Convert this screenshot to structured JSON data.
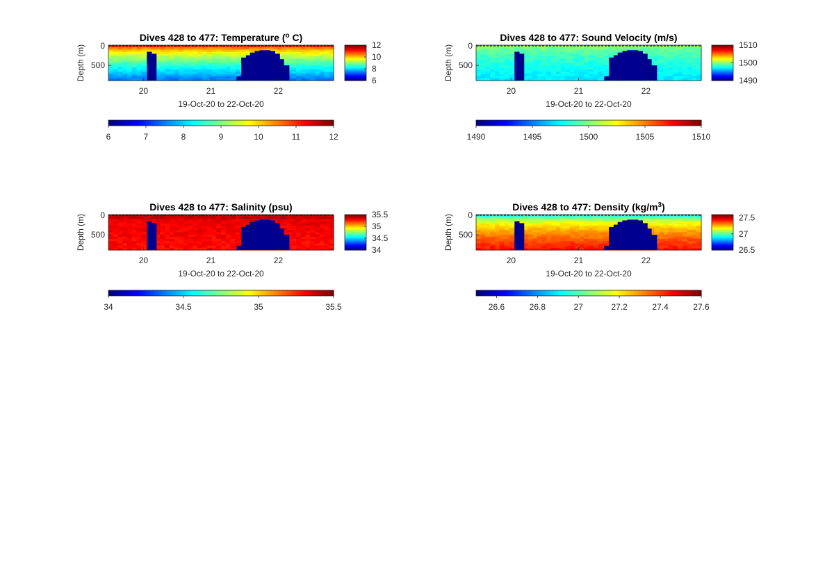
{
  "chart_data": [
    {
      "type": "heatmap",
      "title": "Dives 428 to 477: Temperature (° C)",
      "title_parts": {
        "pre": "Dives 428 to 477: Temperature (",
        "sup": "o",
        "post": " C)"
      },
      "ylabel": "Depth (m)",
      "xlabel": "19-Oct-20 to 22-Oct-20",
      "x_ticks": [
        "20",
        "21",
        "22"
      ],
      "y_ticks": [
        "0",
        "500"
      ],
      "cbar_right_ticks": [
        "12",
        "10",
        "8",
        "6"
      ],
      "cbar_bottom_ticks": [
        "6",
        "7",
        "8",
        "9",
        "10",
        "11",
        "12"
      ],
      "clim": [
        6,
        12
      ],
      "surface_value": 11.6,
      "deep_value": 7.4,
      "colormap": "jet"
    },
    {
      "type": "heatmap",
      "title": "Dives 428 to 477: Sound Velocity (m/s)",
      "title_parts": {
        "pre": "Dives 428 to 477: Sound Velocity (m/s)",
        "sup": "",
        "post": ""
      },
      "ylabel": "Depth (m)",
      "xlabel": "19-Oct-20 to 22-Oct-20",
      "x_ticks": [
        "20",
        "21",
        "22"
      ],
      "y_ticks": [
        "0",
        "500"
      ],
      "cbar_right_ticks": [
        "1510",
        "1500",
        "1490"
      ],
      "cbar_bottom_ticks": [
        "1490",
        "1495",
        "1500",
        "1505",
        "1510"
      ],
      "clim": [
        1490,
        1510
      ],
      "surface_value": 1501,
      "deep_value": 1497,
      "colormap": "jet"
    },
    {
      "type": "heatmap",
      "title": "Dives 428 to 477: Salinity (psu)",
      "title_parts": {
        "pre": "Dives 428 to 477: Salinity (psu)",
        "sup": "",
        "post": ""
      },
      "ylabel": "Depth (m)",
      "xlabel": "19-Oct-20 to 22-Oct-20",
      "x_ticks": [
        "20",
        "21",
        "22"
      ],
      "y_ticks": [
        "0",
        "500"
      ],
      "cbar_right_ticks": [
        "35.5",
        "35",
        "34.5",
        "34"
      ],
      "cbar_bottom_ticks": [
        "34",
        "34.5",
        "35",
        "35.5"
      ],
      "clim": [
        34,
        35.5
      ],
      "surface_value": 35.35,
      "deep_value": 35.35,
      "colormap": "jet"
    },
    {
      "type": "heatmap",
      "title": "Dives 428 to 477: Density (kg/m³)",
      "title_parts": {
        "pre": "Dives 428 to 477: Density (kg/m",
        "sup": "3",
        "post": ")"
      },
      "ylabel": "Depth (m)",
      "xlabel": "19-Oct-20 to 22-Oct-20",
      "x_ticks": [
        "20",
        "21",
        "22"
      ],
      "y_ticks": [
        "0",
        "500"
      ],
      "cbar_right_ticks": [
        "27.5",
        "27",
        "26.5"
      ],
      "cbar_bottom_ticks": [
        "26.6",
        "26.8",
        "27",
        "27.2",
        "27.4",
        "27.6"
      ],
      "clim": [
        26.5,
        27.6
      ],
      "surface_value": 26.75,
      "deep_value": 27.45,
      "colormap": "jet"
    }
  ]
}
